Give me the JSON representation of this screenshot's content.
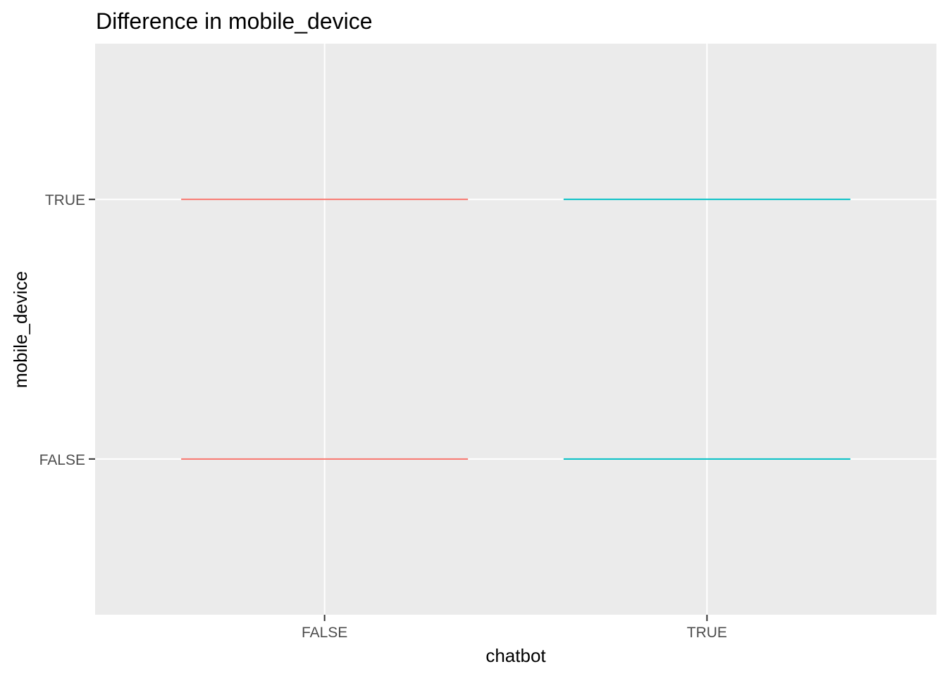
{
  "chart_data": {
    "type": "boxplot",
    "title": "Difference in mobile_device",
    "xlabel": "chatbot",
    "ylabel": "mobile_device",
    "x_categories": [
      "FALSE",
      "TRUE"
    ],
    "y_categories": [
      "FALSE",
      "TRUE"
    ],
    "grid": true,
    "legend": "none",
    "panel_background": "#EBEBEB",
    "grid_color": "#FFFFFF",
    "series": [
      {
        "x": "FALSE",
        "color": "#F8766D",
        "boxes": [
          {
            "level": "FALSE",
            "min": "FALSE",
            "q1": "FALSE",
            "median": "FALSE",
            "q3": "FALSE",
            "max": "FALSE"
          },
          {
            "level": "TRUE",
            "min": "TRUE",
            "q1": "TRUE",
            "median": "TRUE",
            "q3": "TRUE",
            "max": "TRUE"
          }
        ]
      },
      {
        "x": "TRUE",
        "color": "#00BFC4",
        "boxes": [
          {
            "level": "FALSE",
            "min": "FALSE",
            "q1": "FALSE",
            "median": "FALSE",
            "q3": "FALSE",
            "max": "FALSE"
          },
          {
            "level": "TRUE",
            "min": "TRUE",
            "q1": "TRUE",
            "median": "TRUE",
            "q3": "TRUE",
            "max": "TRUE"
          }
        ]
      }
    ]
  }
}
